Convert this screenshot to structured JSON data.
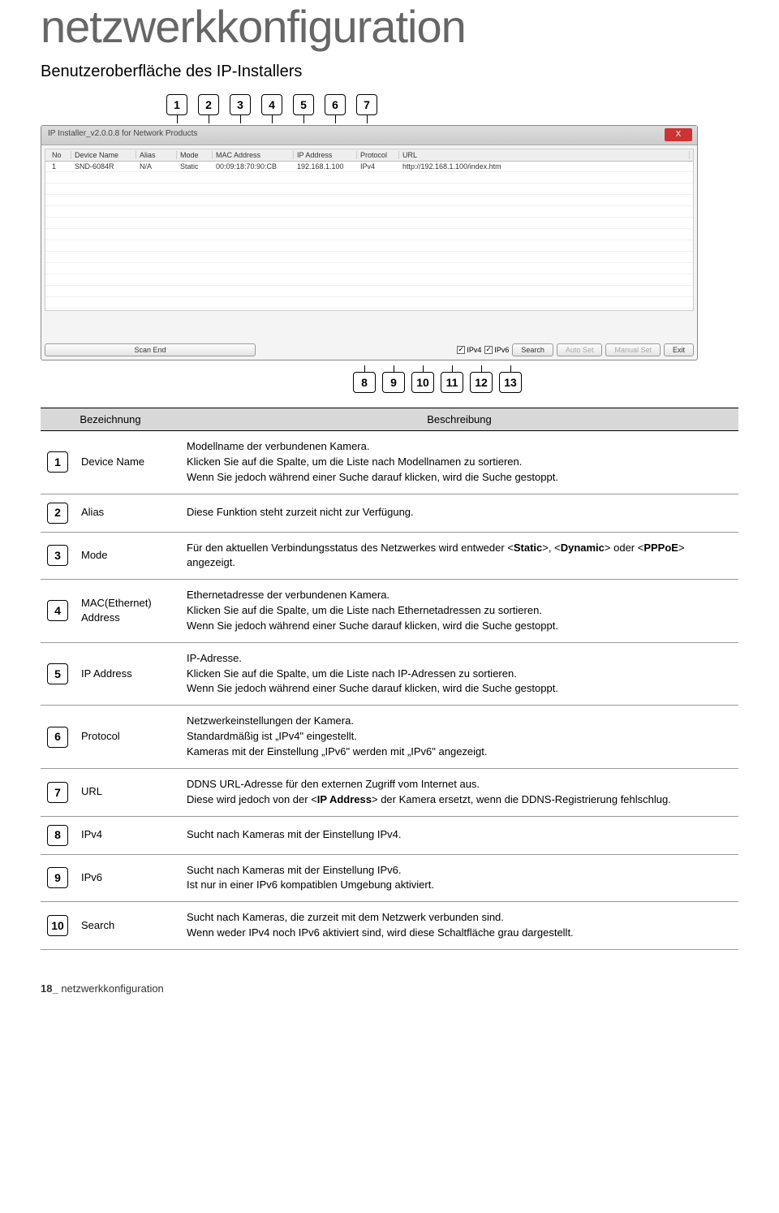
{
  "page": {
    "title": "netzwerkkonfiguration",
    "subtitle": "Benutzeroberfläche des IP-Installers",
    "footer_page": "18_",
    "footer_section": "netzwerkkonfiguration"
  },
  "callouts_top": [
    "1",
    "2",
    "3",
    "4",
    "5",
    "6",
    "7"
  ],
  "callouts_bottom": [
    "8",
    "9",
    "10",
    "11",
    "12",
    "13"
  ],
  "screenshot": {
    "window_title": "IP Installer_v2.0.0.8 for Network Products",
    "columns": [
      "No",
      "Device Name",
      "Alias",
      "Mode",
      "MAC Address",
      "IP Address",
      "Protocol",
      "URL"
    ],
    "row": {
      "no": "1",
      "device_name": "SND-6084R",
      "alias": "N/A",
      "mode": "Static",
      "mac": "00:09:18:70:90:CB",
      "ip": "192.168.1.100",
      "protocol": "IPv4",
      "url": "http://192.168.1.100/index.htm"
    },
    "bottom": {
      "scan": "Scan End",
      "ipv4": "IPv4",
      "ipv6": "IPv6",
      "search": "Search",
      "auto_set": "Auto Set",
      "manual_set": "Manual Set",
      "exit": "Exit"
    }
  },
  "table": {
    "head_left": "Bezeichnung",
    "head_right": "Beschreibung",
    "rows": [
      {
        "num": "1",
        "label": "Device Name",
        "desc": "Modellname der verbundenen Kamera.\nKlicken Sie auf die Spalte, um die Liste nach Modellnamen zu sortieren.\nWenn Sie jedoch während einer Suche darauf klicken, wird die Suche gestoppt."
      },
      {
        "num": "2",
        "label": "Alias",
        "desc": "Diese Funktion steht zurzeit nicht zur Verfügung."
      },
      {
        "num": "3",
        "label": "Mode",
        "desc": "Für den aktuellen Verbindungsstatus des Netzwerkes wird entweder <Static>, <Dynamic> oder <PPPoE> angezeigt."
      },
      {
        "num": "4",
        "label": "MAC(Ethernet) Address",
        "desc": "Ethernetadresse der verbundenen Kamera.\nKlicken Sie auf die Spalte, um die Liste nach Ethernetadressen zu sortieren.\nWenn Sie jedoch während einer Suche darauf klicken, wird die Suche gestoppt."
      },
      {
        "num": "5",
        "label": "IP Address",
        "desc": "IP-Adresse.\nKlicken Sie auf die Spalte, um die Liste nach IP-Adressen zu sortieren.\nWenn Sie jedoch während einer Suche darauf klicken, wird die Suche gestoppt."
      },
      {
        "num": "6",
        "label": "Protocol",
        "desc": "Netzwerkeinstellungen der Kamera.\nStandardmäßig ist „IPv4\" eingestellt.\nKameras mit der Einstellung „IPv6\" werden mit „IPv6\" angezeigt."
      },
      {
        "num": "7",
        "label": "URL",
        "desc": "DDNS URL-Adresse für den externen Zugriff vom Internet aus.\nDiese wird jedoch von der <IP Address> der Kamera ersetzt, wenn die DDNS-Registrierung fehlschlug."
      },
      {
        "num": "8",
        "label": "IPv4",
        "desc": "Sucht nach Kameras mit der Einstellung IPv4."
      },
      {
        "num": "9",
        "label": "IPv6",
        "desc": "Sucht nach Kameras mit der Einstellung IPv6.\nIst nur in einer IPv6 kompatiblen Umgebung aktiviert."
      },
      {
        "num": "10",
        "label": "Search",
        "desc": "Sucht nach Kameras, die zurzeit mit dem Netzwerk verbunden sind.\nWenn weder IPv4 noch IPv6 aktiviert sind, wird diese Schaltfläche grau dargestellt."
      }
    ]
  }
}
